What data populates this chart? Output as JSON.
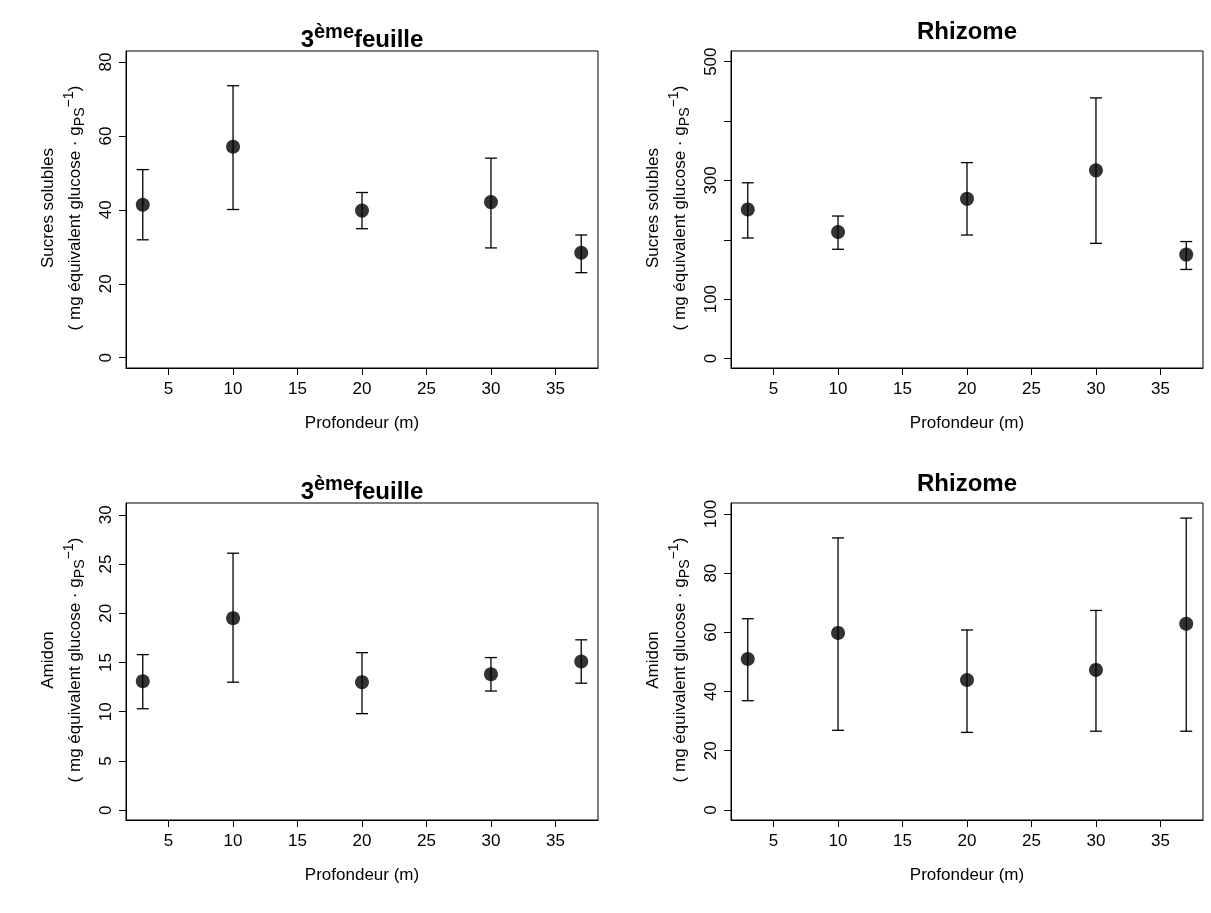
{
  "chart_data": [
    {
      "type": "scatter",
      "title": "3$^{ème}$feuille",
      "xlabel": "Profondeur (m)",
      "ylabel": "Sucres solubles\n( mg équivalent glucose · g$_{PS}$$^{−1}$)",
      "color": "#000000",
      "marker": "circle",
      "x": [
        3,
        10,
        20,
        30,
        37
      ],
      "values": [
        41.4,
        57.1,
        39.8,
        42.1,
        28.4
      ],
      "errors": [
        [
          31.9,
          50.9
        ],
        [
          40.1,
          73.6
        ],
        [
          34.9,
          44.7
        ],
        [
          29.7,
          54.0
        ],
        [
          23.0,
          33.2
        ]
      ],
      "xlim": [
        1.7,
        38.3
      ],
      "xticks": [
        5,
        10,
        15,
        20,
        25,
        30,
        35
      ],
      "ylim": [
        -2.8,
        83
      ],
      "yticks": [
        0,
        20,
        40,
        60,
        80
      ]
    },
    {
      "type": "scatter",
      "title": "Rhizome",
      "xlabel": "Profondeur (m)",
      "ylabel": "Sucres solubles\n( mg équivalent glucose · g$_{PS}$$^{−1}$)",
      "color": "#000000",
      "marker": "circle",
      "x": [
        3,
        10,
        20,
        30,
        37
      ],
      "values": [
        251,
        213,
        269,
        317,
        175
      ],
      "errors": [
        [
          203,
          296
        ],
        [
          184,
          240
        ],
        [
          208,
          330
        ],
        [
          194,
          439
        ],
        [
          150,
          197
        ]
      ],
      "xlim": [
        1.7,
        38.3
      ],
      "xticks": [
        5,
        10,
        15,
        20,
        25,
        30,
        35
      ],
      "ylim": [
        -16,
        518
      ],
      "yticks": [
        0,
        100,
        {
          "value": 200,
          "label": null
        },
        300,
        {
          "value": 400,
          "label": null
        },
        500
      ]
    },
    {
      "type": "scatter",
      "title": "3$^{ème}$feuille",
      "xlabel": "Profondeur (m)",
      "ylabel": "Amidon\n( mg équivalent glucose · g$_{PS}$$^{−1}$)",
      "color": "#000000",
      "marker": "circle",
      "x": [
        3,
        10,
        20,
        30,
        37
      ],
      "values": [
        13.1,
        19.5,
        13.0,
        13.8,
        15.1
      ],
      "errors": [
        [
          10.3,
          15.8
        ],
        [
          13.0,
          26.1
        ],
        [
          9.8,
          16.0
        ],
        [
          12.1,
          15.5
        ],
        [
          12.9,
          17.3
        ]
      ],
      "xlim": [
        1.7,
        38.3
      ],
      "xticks": [
        5,
        10,
        15,
        20,
        25,
        30,
        35
      ],
      "ylim": [
        -1,
        31.2
      ],
      "yticks": [
        0,
        5,
        10,
        15,
        20,
        25,
        30
      ]
    },
    {
      "type": "scatter",
      "title": "Rhizome",
      "xlabel": "Profondeur (m)",
      "ylabel": "Amidon\n( mg équivalent glucose · g$_{PS}$$^{−1}$)",
      "color": "#000000",
      "marker": "circle",
      "x": [
        3,
        10,
        20,
        30,
        37
      ],
      "values": [
        51.0,
        59.8,
        43.9,
        47.3,
        62.9
      ],
      "errors": [
        [
          36.9,
          64.6
        ],
        [
          26.9,
          91.9
        ],
        [
          26.2,
          60.8
        ],
        [
          26.6,
          67.4
        ],
        [
          26.6,
          98.6
        ]
      ],
      "xlim": [
        1.7,
        38.3
      ],
      "xticks": [
        5,
        10,
        15,
        20,
        25,
        30,
        35
      ],
      "ylim": [
        -3.4,
        103.7
      ],
      "yticks": [
        0,
        20,
        40,
        60,
        80,
        100
      ]
    }
  ]
}
